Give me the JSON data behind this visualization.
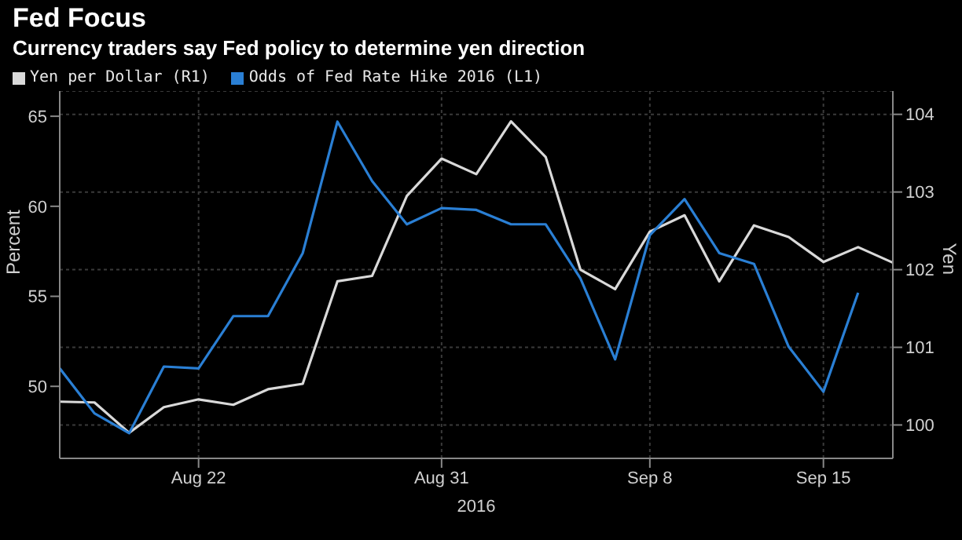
{
  "chart_data": {
    "type": "line",
    "title": "Fed Focus",
    "subtitle": "Currency traders say Fed policy to determine yen direction",
    "xlabel": "2016",
    "ylabel": "Percent",
    "y2label": "Yen",
    "categories": [
      null,
      null,
      null,
      null,
      "Aug 22",
      null,
      null,
      null,
      null,
      null,
      null,
      "Aug 31",
      null,
      null,
      null,
      null,
      null,
      "Sep 8",
      null,
      null,
      null,
      null,
      "Sep 15",
      null,
      null
    ],
    "series": [
      {
        "name": "Yen per Dollar (R1)",
        "color": "#d9d9d9",
        "axis": "y2",
        "values": [
          100.3,
          100.29,
          99.9,
          100.23,
          100.33,
          100.26,
          100.46,
          100.53,
          101.85,
          101.92,
          102.95,
          103.43,
          103.23,
          103.91,
          103.45,
          102.0,
          101.75,
          102.49,
          102.7,
          101.85,
          102.57,
          102.42,
          102.1,
          102.29,
          102.09
        ]
      },
      {
        "name": "Odds of Fed Rate Hike 2016 (L1)",
        "color": "#2a7fd4",
        "axis": "y",
        "values": [
          51.0,
          48.5,
          47.4,
          51.1,
          51.0,
          53.9,
          53.9,
          57.4,
          64.7,
          61.4,
          59.0,
          59.9,
          59.8,
          59.0,
          59.0,
          56.0,
          51.5,
          58.4,
          60.4,
          57.4,
          56.8,
          52.2,
          49.7,
          55.2,
          null
        ]
      }
    ],
    "ylim": [
      46,
      66.4
    ],
    "yticks": [
      50,
      55,
      60,
      65
    ],
    "y2lim": [
      99.57,
      104.3
    ],
    "y2ticks": [
      100,
      101,
      102,
      103,
      104
    ],
    "grid": true,
    "legend": "top left",
    "marker": "none",
    "line_style": "solid"
  }
}
